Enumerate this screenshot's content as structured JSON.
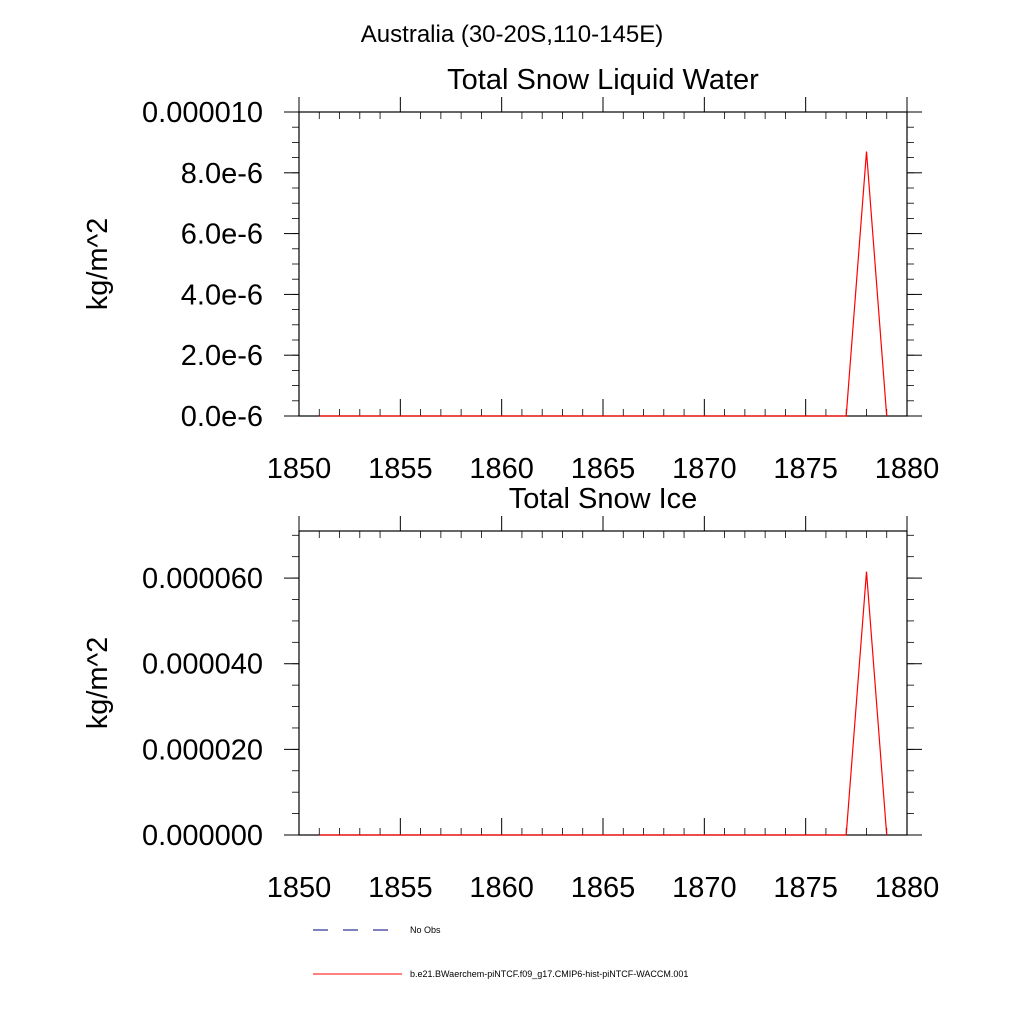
{
  "figure": {
    "title": "Australia (30-20S,110-145E)"
  },
  "chart_data": [
    {
      "type": "line",
      "title": "Total Snow Liquid Water",
      "xlabel": "",
      "ylabel": "kg/m^2",
      "xlim": [
        1850,
        1880
      ],
      "ylim": [
        0,
        1e-05
      ],
      "x_ticks": [
        1850,
        1855,
        1860,
        1865,
        1870,
        1875,
        1880
      ],
      "x_tick_labels": [
        "1850",
        "1855",
        "1860",
        "1865",
        "1870",
        "1875",
        "1880"
      ],
      "y_ticks": [
        0,
        2e-06,
        4e-06,
        6e-06,
        8e-06,
        1e-05
      ],
      "y_tick_labels": [
        "0.0e-6",
        "2.0e-6",
        "4.0e-6",
        "6.0e-6",
        "8.0e-6",
        "0.000010"
      ],
      "y_minor_step": 5e-07,
      "grid": false,
      "series": [
        {
          "name": "b.e21.BWaerchem-piNTCF.f09_g17.CMIP6-hist-piNTCF-WACCM.001",
          "color": "#ff0000",
          "x": [
            1851,
            1877,
            1878,
            1879
          ],
          "y": [
            0,
            0,
            8.7e-06,
            0
          ]
        }
      ]
    },
    {
      "type": "line",
      "title": "Total Snow Ice",
      "xlabel": "",
      "ylabel": "kg/m^2",
      "xlim": [
        1850,
        1880
      ],
      "ylim": [
        0,
        7.1e-05
      ],
      "x_ticks": [
        1850,
        1855,
        1860,
        1865,
        1870,
        1875,
        1880
      ],
      "x_tick_labels": [
        "1850",
        "1855",
        "1860",
        "1865",
        "1870",
        "1875",
        "1880"
      ],
      "y_ticks": [
        0,
        2e-05,
        4e-05,
        6e-05
      ],
      "y_tick_labels": [
        "0.000000",
        "0.000020",
        "0.000040",
        "0.000060"
      ],
      "y_minor_step": 5e-06,
      "grid": false,
      "series": [
        {
          "name": "b.e21.BWaerchem-piNTCF.f09_g17.CMIP6-hist-piNTCF-WACCM.001",
          "color": "#ff0000",
          "x": [
            1851,
            1877,
            1878,
            1879
          ],
          "y": [
            0,
            0,
            6.15e-05,
            0
          ]
        }
      ]
    }
  ],
  "legend": {
    "placement": "bottom-left",
    "items": [
      {
        "label": "No Obs",
        "color": "#000080",
        "dashed": true
      },
      {
        "label": "b.e21.BWaerchem-piNTCF.f09_g17.CMIP6-hist-piNTCF-WACCM.001",
        "color": "#ff0000",
        "dashed": false
      }
    ]
  }
}
